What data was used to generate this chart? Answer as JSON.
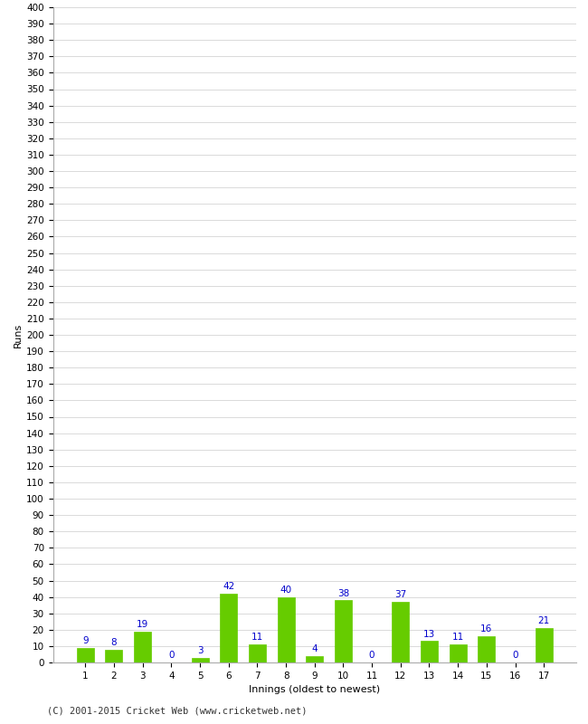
{
  "xlabel": "Innings (oldest to newest)",
  "ylabel": "Runs",
  "categories": [
    1,
    2,
    3,
    4,
    5,
    6,
    7,
    8,
    9,
    10,
    11,
    12,
    13,
    14,
    15,
    16,
    17
  ],
  "values": [
    9,
    8,
    19,
    0,
    3,
    42,
    11,
    40,
    4,
    38,
    0,
    37,
    13,
    11,
    16,
    0,
    21
  ],
  "bar_color": "#66cc00",
  "bar_edge_color": "#66cc00",
  "label_color": "#0000cc",
  "background_color": "#ffffff",
  "grid_color": "#cccccc",
  "ylim": [
    0,
    400
  ],
  "ytick_step": 10,
  "footer": "(C) 2001-2015 Cricket Web (www.cricketweb.net)",
  "label_fontsize": 7.5,
  "axis_label_fontsize": 8,
  "tick_fontsize": 7.5,
  "footer_fontsize": 7.5
}
